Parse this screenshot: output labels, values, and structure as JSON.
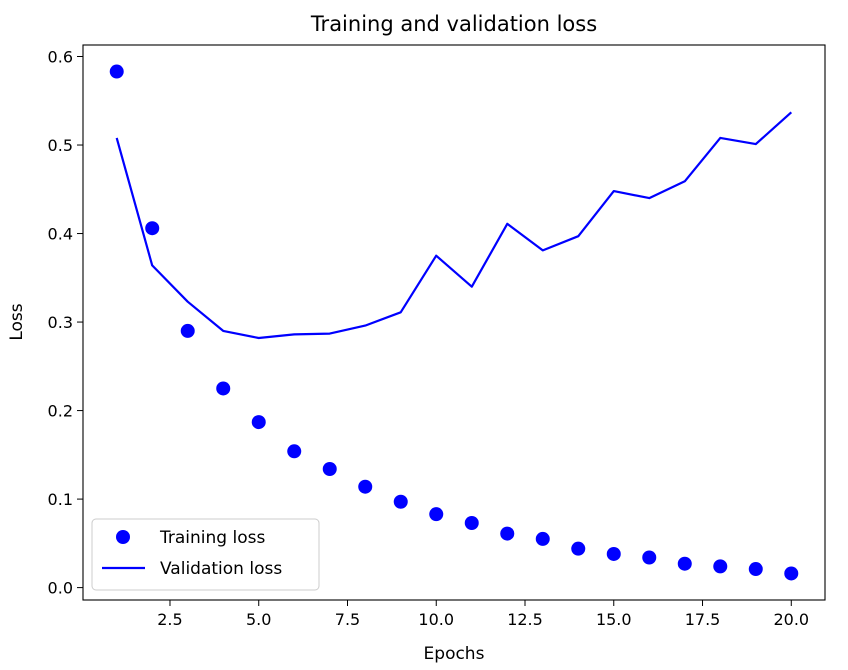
{
  "chart_data": {
    "type": "line",
    "title": "Training and validation loss",
    "xlabel": "Epochs",
    "ylabel": "Loss",
    "xlim": [
      0.05,
      20.95
    ],
    "ylim": [
      -0.014,
      0.613
    ],
    "x_ticks": [
      2.5,
      5.0,
      7.5,
      10.0,
      12.5,
      15.0,
      17.5,
      20.0
    ],
    "x_tick_labels": [
      "2.5",
      "5.0",
      "7.5",
      "10.0",
      "12.5",
      "15.0",
      "17.5",
      "20.0"
    ],
    "y_ticks": [
      0.0,
      0.1,
      0.2,
      0.3,
      0.4,
      0.5,
      0.6
    ],
    "y_tick_labels": [
      "0.0",
      "0.1",
      "0.2",
      "0.3",
      "0.4",
      "0.5",
      "0.6"
    ],
    "grid": false,
    "legend_position": "lower-left",
    "series": [
      {
        "name": "Training loss",
        "style": "markers",
        "color": "#0000ff",
        "x": [
          1,
          2,
          3,
          4,
          5,
          6,
          7,
          8,
          9,
          10,
          11,
          12,
          13,
          14,
          15,
          16,
          17,
          18,
          19,
          20
        ],
        "y": [
          0.583,
          0.406,
          0.29,
          0.225,
          0.187,
          0.154,
          0.134,
          0.114,
          0.097,
          0.083,
          0.073,
          0.061,
          0.055,
          0.044,
          0.038,
          0.034,
          0.027,
          0.024,
          0.021,
          0.016
        ]
      },
      {
        "name": "Validation loss",
        "style": "line",
        "color": "#0000ff",
        "x": [
          1,
          2,
          3,
          4,
          5,
          6,
          7,
          8,
          9,
          10,
          11,
          12,
          13,
          14,
          15,
          16,
          17,
          18,
          19,
          20
        ],
        "y": [
          0.508,
          0.364,
          0.323,
          0.29,
          0.282,
          0.286,
          0.287,
          0.296,
          0.311,
          0.375,
          0.34,
          0.411,
          0.381,
          0.397,
          0.448,
          0.44,
          0.459,
          0.508,
          0.501,
          0.537
        ]
      }
    ]
  }
}
